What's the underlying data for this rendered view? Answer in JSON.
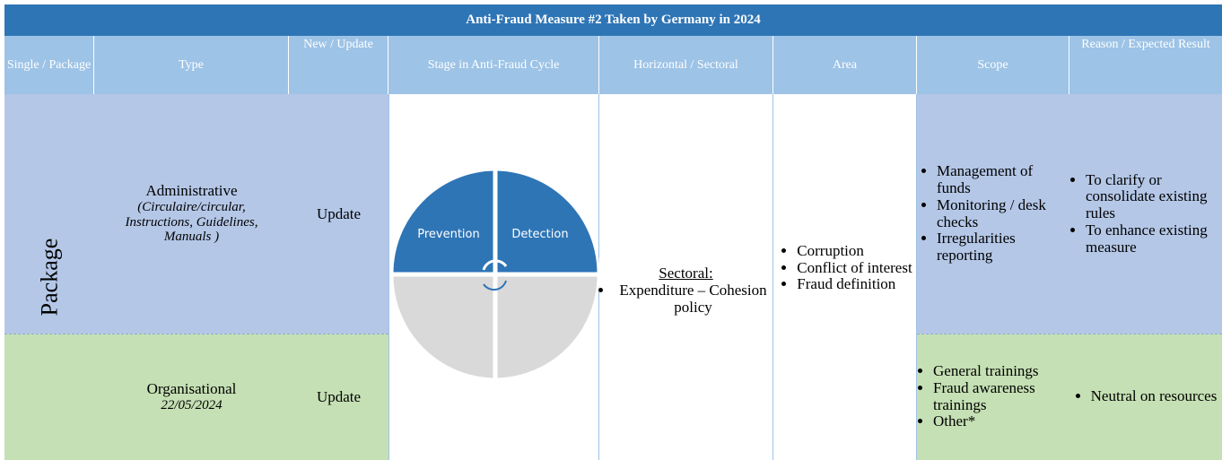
{
  "title": "Anti-Fraud Measure #2 Taken by Germany in 2024",
  "headers": [
    "Single / Package",
    "Type",
    "New / Update",
    "Stage in Anti-Fraud Cycle",
    "Horizontal / Sectoral",
    "Area",
    "Scope",
    "Reason / Expected Result"
  ],
  "single_package": "Package",
  "rows": [
    {
      "type": "Administrative",
      "type_detail": "(Circulaire/circular, Instructions, Guidelines, Manuals )",
      "new_update": "Update",
      "scope": [
        "Management of funds",
        "Monitoring / desk checks",
        "Irregularities reporting"
      ],
      "reason": [
        "To clarify or consolidate existing rules",
        "To enhance existing measure"
      ]
    },
    {
      "type": "Organisational",
      "type_detail": "22/05/2024",
      "new_update": "Update",
      "scope": [
        "General trainings",
        "Fraud awareness trainings",
        "Other*"
      ],
      "reason": [
        "Neutral on resources"
      ]
    }
  ],
  "stage": {
    "prevention": "Prevention",
    "detection": "Detection"
  },
  "horizontal": {
    "label": "Sectoral:",
    "items": [
      "Expenditure – Cohesion policy"
    ]
  },
  "area": [
    "Corruption",
    "Conflict of interest",
    "Fraud definition"
  ]
}
